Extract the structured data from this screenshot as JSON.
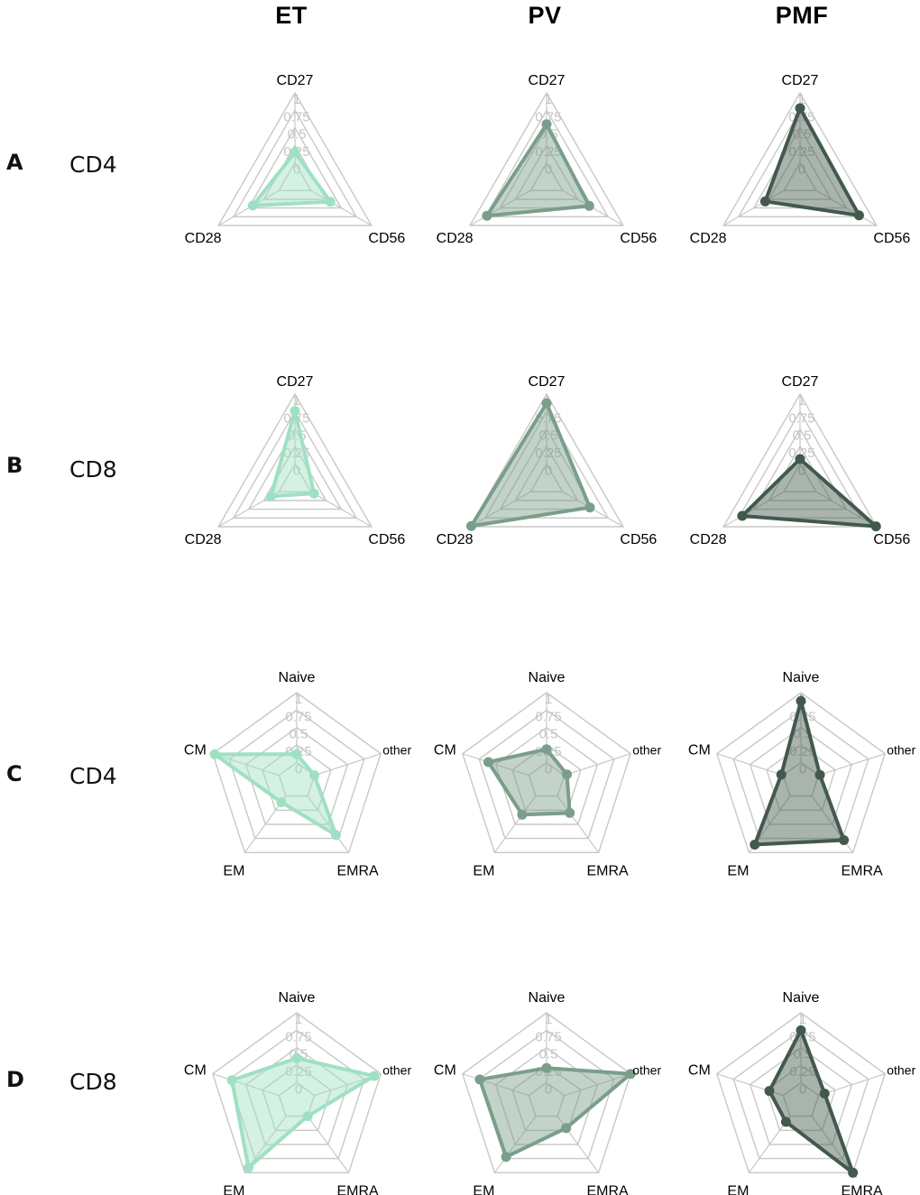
{
  "columns": [
    "ET",
    "PV",
    "PMF"
  ],
  "rows": [
    {
      "letter": "A",
      "group": "CD4"
    },
    {
      "letter": "B",
      "group": "CD8"
    },
    {
      "letter": "C",
      "group": "CD4"
    },
    {
      "letter": "D",
      "group": "CD8"
    }
  ],
  "colors": {
    "ET": "#9fe0c3",
    "PV": "#7a9e8a",
    "PMF": "#42594c"
  },
  "chart_data": [
    {
      "type": "radar",
      "panel": "A",
      "population": "CD4",
      "condition": "ET",
      "axes": [
        "CD27",
        "CD56",
        "CD28"
      ],
      "ticks": [
        "0",
        "0.25",
        "0.5",
        "0.75",
        "1"
      ],
      "range": [
        0,
        1
      ],
      "values": [
        0.15,
        0.32,
        0.43
      ]
    },
    {
      "type": "radar",
      "panel": "A",
      "population": "CD4",
      "condition": "PV",
      "axes": [
        "CD27",
        "CD56",
        "CD28"
      ],
      "ticks": [
        "0",
        "0.25",
        "0.5",
        "0.75",
        "1"
      ],
      "range": [
        0,
        1
      ],
      "values": [
        0.55,
        0.44,
        0.72
      ]
    },
    {
      "type": "radar",
      "panel": "A",
      "population": "CD4",
      "condition": "PMF",
      "axes": [
        "CD27",
        "CD56",
        "CD28"
      ],
      "ticks": [
        "0",
        "0.25",
        "0.5",
        "0.75",
        "1"
      ],
      "range": [
        0,
        1
      ],
      "values": [
        0.78,
        0.71,
        0.31
      ]
    },
    {
      "type": "radar",
      "panel": "B",
      "population": "CD8",
      "condition": "ET",
      "axes": [
        "CD27",
        "CD56",
        "CD28"
      ],
      "ticks": [
        "0",
        "0.25",
        "0.5",
        "0.75",
        "1"
      ],
      "range": [
        0,
        1
      ],
      "values": [
        0.76,
        0.05,
        0.13
      ]
    },
    {
      "type": "radar",
      "panel": "B",
      "population": "CD8",
      "condition": "PV",
      "axes": [
        "CD27",
        "CD56",
        "CD28"
      ],
      "ticks": [
        "0",
        "0.25",
        "0.5",
        "0.75",
        "1"
      ],
      "range": [
        0,
        1
      ],
      "values": [
        0.87,
        0.45,
        0.98
      ]
    },
    {
      "type": "radar",
      "panel": "B",
      "population": "CD8",
      "condition": "PMF",
      "axes": [
        "CD27",
        "CD56",
        "CD28"
      ],
      "ticks": [
        "0",
        "0.25",
        "0.5",
        "0.75",
        "1"
      ],
      "range": [
        0,
        1
      ],
      "values": [
        0.07,
        0.99,
        0.69
      ]
    },
    {
      "type": "radar",
      "panel": "C",
      "population": "CD4",
      "condition": "ET",
      "axes": [
        "Naive",
        "other",
        "EMRA",
        "EM",
        "CM"
      ],
      "ticks": [
        "0",
        "0.25",
        "0.5",
        "0.75",
        "1"
      ],
      "range": [
        0,
        1
      ],
      "values": [
        0.12,
        0.0,
        0.69,
        0.11,
        0.97
      ]
    },
    {
      "type": "radar",
      "panel": "C",
      "population": "CD4",
      "condition": "PV",
      "axes": [
        "Naive",
        "other",
        "EMRA",
        "EM",
        "CM"
      ],
      "ticks": [
        "0",
        "0.25",
        "0.5",
        "0.75",
        "1"
      ],
      "range": [
        0,
        1
      ],
      "values": [
        0.19,
        0.04,
        0.3,
        0.33,
        0.61
      ]
    },
    {
      "type": "radar",
      "panel": "C",
      "population": "CD4",
      "condition": "PMF",
      "axes": [
        "Naive",
        "other",
        "EMRA",
        "EM",
        "CM"
      ],
      "ticks": [
        "0",
        "0.25",
        "0.5",
        "0.75",
        "1"
      ],
      "range": [
        0,
        1
      ],
      "values": [
        0.88,
        0.02,
        0.78,
        0.86,
        0.03
      ]
    },
    {
      "type": "radar",
      "panel": "D",
      "population": "CD8",
      "condition": "ET",
      "axes": [
        "Naive",
        "other",
        "EMRA",
        "EM",
        "CM"
      ],
      "ticks": [
        "0",
        "0.25",
        "0.5",
        "0.75",
        "1"
      ],
      "range": [
        0,
        1
      ],
      "values": [
        0.35,
        0.9,
        0.0,
        0.91,
        0.71
      ]
    },
    {
      "type": "radar",
      "panel": "D",
      "population": "CD8",
      "condition": "PV",
      "axes": [
        "Naive",
        "other",
        "EMRA",
        "EM",
        "CM"
      ],
      "ticks": [
        "0",
        "0.25",
        "0.5",
        "0.75",
        "1"
      ],
      "range": [
        0,
        1
      ],
      "values": [
        0.21,
        1.0,
        0.21,
        0.72,
        0.74
      ]
    },
    {
      "type": "radar",
      "panel": "D",
      "population": "CD8",
      "condition": "PMF",
      "axes": [
        "Naive",
        "other",
        "EMRA",
        "EM",
        "CM"
      ],
      "ticks": [
        "0",
        "0.25",
        "0.5",
        "0.75",
        "1"
      ],
      "range": [
        0,
        1
      ],
      "values": [
        0.75,
        0.09,
        1.0,
        0.1,
        0.21
      ]
    }
  ]
}
